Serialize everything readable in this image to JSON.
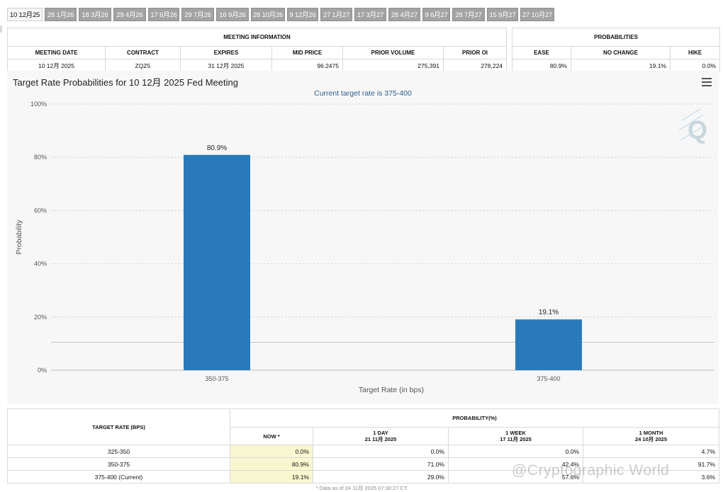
{
  "tabs": [
    "10 12月25",
    "28 1月26",
    "18 3月26",
    "29 4月26",
    "17 6月26",
    "29 7月26",
    "16 9月26",
    "28 10月26",
    "9 12月26",
    "27 1月27",
    "17 3月27",
    "28 4月27",
    "9 6月27",
    "28 7月27",
    "15 9月27",
    "27 10月27"
  ],
  "meeting_info": {
    "section_title": "MEETING INFORMATION",
    "headers": [
      "MEETING DATE",
      "CONTRACT",
      "EXPIRES",
      "MID PRICE",
      "PRIOR VOLUME",
      "PRIOR OI"
    ],
    "values": [
      "10 12月 2025",
      "ZQZ5",
      "31 12月 2025",
      "96.2475",
      "275,391",
      "278,224"
    ]
  },
  "probabilities": {
    "section_title": "PROBABILITIES",
    "headers": [
      "EASE",
      "NO CHANGE",
      "HIKE"
    ],
    "values": [
      "80.9%",
      "19.1%",
      "0.0%"
    ]
  },
  "chart": {
    "title": "Target Rate Probabilities for 10 12月 2025 Fed Meeting",
    "subtitle": "Current target rate is 375-400",
    "logo_letter": "Q"
  },
  "chart_data": {
    "type": "bar",
    "title": "Target Rate Probabilities for 10 12月 2025 Fed Meeting",
    "subtitle": "Current target rate is 375-400",
    "categories": [
      "350-375",
      "375-400"
    ],
    "values": [
      80.9,
      19.1
    ],
    "value_labels": [
      "80.9%",
      "19.1%"
    ],
    "xlabel": "Target Rate (in bps)",
    "ylabel": "Probability",
    "ylim": [
      0,
      100
    ],
    "yticks": [
      0,
      20,
      40,
      60,
      80,
      100
    ],
    "ytick_labels": [
      "0%",
      "20%",
      "40%",
      "60%",
      "80%",
      "100%"
    ],
    "reference_line": 10.5,
    "grid": true,
    "bar_color": "#2a7ab9"
  },
  "rate_table": {
    "header_left": "TARGET RATE (BPS)",
    "header_group": "PROBABILITY(%)",
    "columns": [
      {
        "label": "NOW *",
        "date": ""
      },
      {
        "label": "1 DAY",
        "date": "21 11月 2025"
      },
      {
        "label": "1 WEEK",
        "date": "17 11月 2025"
      },
      {
        "label": "1 MONTH",
        "date": "24 10月 2025"
      }
    ],
    "rows": [
      {
        "rate": "325-350",
        "values": [
          "0.0%",
          "0.0%",
          "0.0%",
          "4.7%"
        ]
      },
      {
        "rate": "350-375",
        "values": [
          "80.9%",
          "71.0%",
          "42.4%",
          "91.7%"
        ]
      },
      {
        "rate": "375-400 (Current)",
        "values": [
          "19.1%",
          "29.0%",
          "57.6%",
          "3.6%"
        ]
      }
    ]
  },
  "footnote": "* Data as of 24 11月 2025 07:30:27 CT",
  "watermark": "@Cryptographic World"
}
